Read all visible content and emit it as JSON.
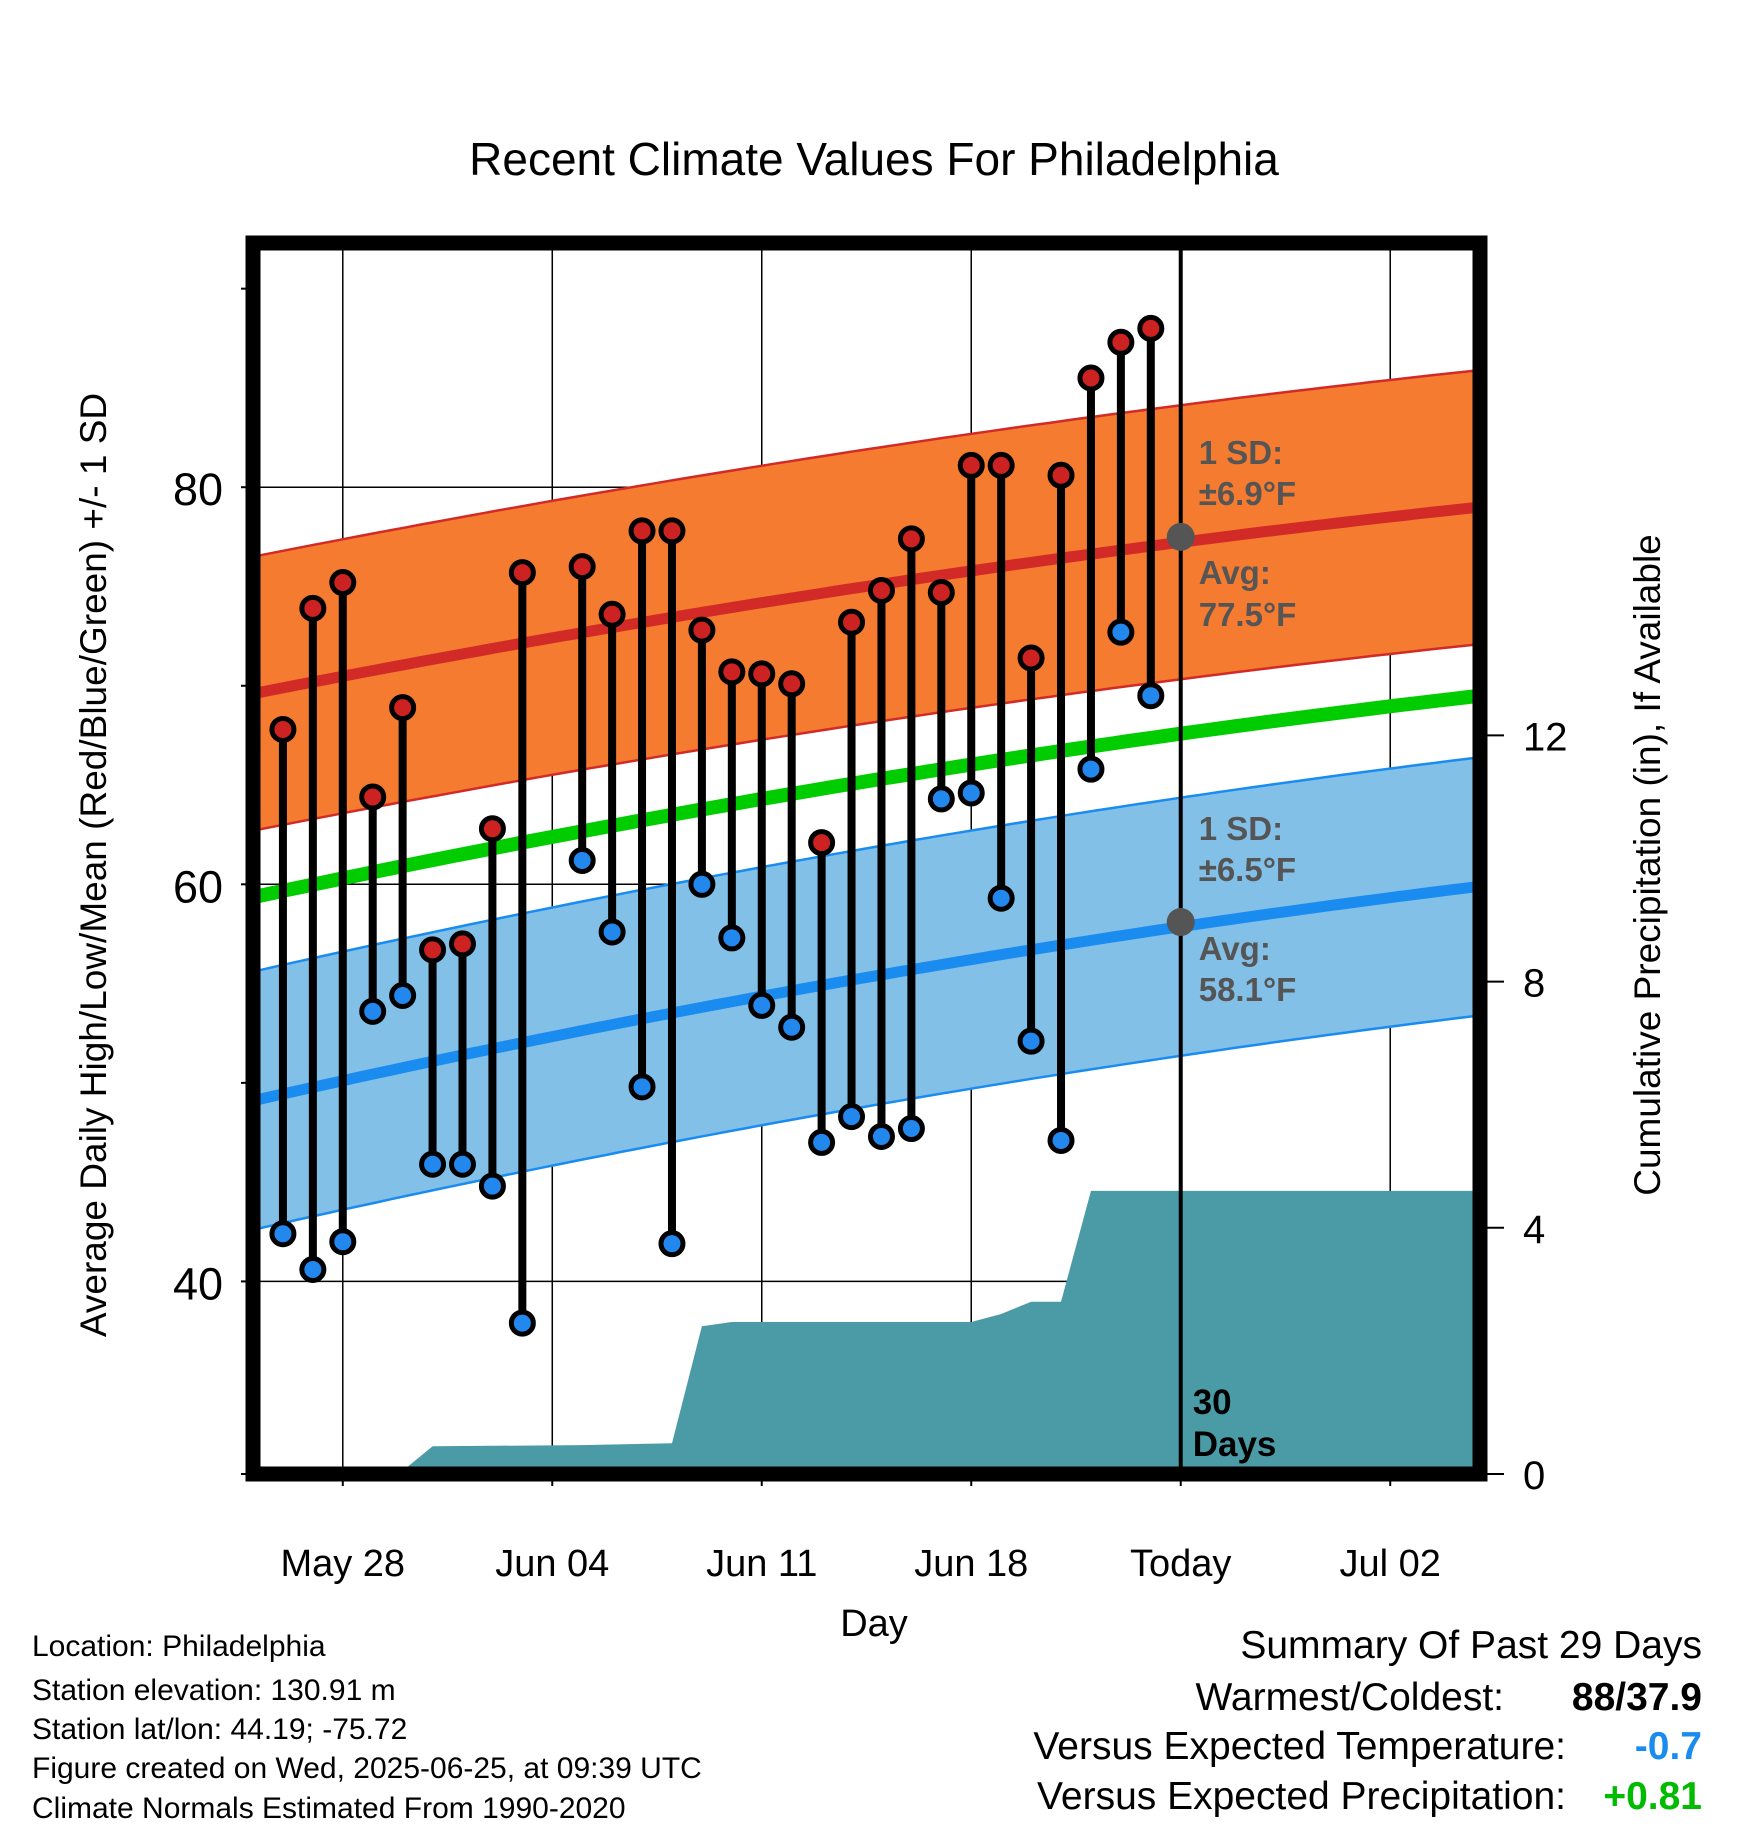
{
  "chart_data": {
    "type": "line",
    "title": "Recent Climate Values For Philadelphia",
    "xlabel": "Day",
    "ylabel": "Average Daily High/Low/Mean (Red/Blue/Green) +/- 1 SD",
    "y2label": "Cumulative Precipitation (in), If Available",
    "xlim": [
      "2025-05-25",
      "2025-07-05"
    ],
    "ylim": [
      30.3,
      92.3
    ],
    "y2lim": [
      0,
      20
    ],
    "x_ticks": [
      {
        "date": "2025-05-28",
        "label": "May 28"
      },
      {
        "date": "2025-06-04",
        "label": "Jun 04"
      },
      {
        "date": "2025-06-11",
        "label": "Jun 11"
      },
      {
        "date": "2025-06-18",
        "label": "Jun 18"
      },
      {
        "date": "2025-06-25",
        "label": "Today"
      },
      {
        "date": "2025-07-02",
        "label": "Jul 02"
      }
    ],
    "y_ticks": [
      40,
      60,
      80
    ],
    "y_minor_ticks": [
      50,
      70,
      90
    ],
    "y2_ticks": [
      0,
      4,
      8,
      12
    ],
    "today": "2025-06-25",
    "today_label": "30\nDays",
    "grid": true,
    "colors": {
      "high_band": "#f47b2f",
      "high_line": "#d22b27",
      "low_band": "#82c0e8",
      "low_line": "#1a8cf0",
      "mean_line": "#00cc00",
      "precip": "#4a9ba5",
      "high_marker": "#cc2222",
      "low_marker": "#2288ee"
    },
    "normals": {
      "high_avg": {
        "start": 69.6,
        "end": 79.0
      },
      "high_sd": 6.9,
      "low_avg": {
        "start": 49.1,
        "end": 59.9
      },
      "low_sd": 6.5,
      "mean": {
        "start": 59.35,
        "end": 69.5
      }
    },
    "high_annotation": {
      "sd_label": "1 SD:",
      "sd_value": "±6.9°F",
      "avg_label": "Avg:",
      "avg_value": "77.5°F",
      "avg": 77.5
    },
    "low_annotation": {
      "sd_label": "1 SD:",
      "sd_value": "±6.5°F",
      "avg_label": "Avg:",
      "avg_value": "58.1°F",
      "avg": 58.1
    },
    "daily": [
      {
        "date": "2025-05-26",
        "high": 67.8,
        "low": 42.4
      },
      {
        "date": "2025-05-27",
        "high": 73.9,
        "low": 40.6
      },
      {
        "date": "2025-05-28",
        "high": 75.2,
        "low": 42.0
      },
      {
        "date": "2025-05-29",
        "high": 64.4,
        "low": 53.6
      },
      {
        "date": "2025-05-30",
        "high": 68.9,
        "low": 54.4
      },
      {
        "date": "2025-05-31",
        "high": 56.7,
        "low": 45.9
      },
      {
        "date": "2025-06-01",
        "high": 57.0,
        "low": 45.9
      },
      {
        "date": "2025-06-02",
        "high": 62.8,
        "low": 44.8
      },
      {
        "date": "2025-06-03",
        "high": 75.7,
        "low": 37.9
      },
      {
        "date": "2025-06-05",
        "high": 76.0,
        "low": 61.2
      },
      {
        "date": "2025-06-06",
        "high": 73.6,
        "low": 57.6
      },
      {
        "date": "2025-06-07",
        "high": 77.8,
        "low": 49.8
      },
      {
        "date": "2025-06-08",
        "high": 77.8,
        "low": 41.9
      },
      {
        "date": "2025-06-09",
        "high": 72.8,
        "low": 60.0
      },
      {
        "date": "2025-06-10",
        "high": 70.7,
        "low": 57.3
      },
      {
        "date": "2025-06-11",
        "high": 70.6,
        "low": 53.9
      },
      {
        "date": "2025-06-12",
        "high": 70.1,
        "low": 52.8
      },
      {
        "date": "2025-06-13",
        "high": 62.1,
        "low": 47.0
      },
      {
        "date": "2025-06-14",
        "high": 73.2,
        "low": 48.3
      },
      {
        "date": "2025-06-15",
        "high": 74.8,
        "low": 47.3
      },
      {
        "date": "2025-06-16",
        "high": 77.4,
        "low": 47.7
      },
      {
        "date": "2025-06-17",
        "high": 74.7,
        "low": 64.3
      },
      {
        "date": "2025-06-18",
        "high": 81.1,
        "low": 64.6
      },
      {
        "date": "2025-06-19",
        "high": 81.1,
        "low": 59.3
      },
      {
        "date": "2025-06-20",
        "high": 71.4,
        "low": 52.1
      },
      {
        "date": "2025-06-21",
        "high": 80.6,
        "low": 47.1
      },
      {
        "date": "2025-06-22",
        "high": 85.5,
        "low": 65.8
      },
      {
        "date": "2025-06-23",
        "high": 87.3,
        "low": 72.7
      },
      {
        "date": "2025-06-24",
        "high": 88.0,
        "low": 69.5
      }
    ],
    "precip_cumulative": [
      {
        "date": "2025-05-25",
        "value": 0.0
      },
      {
        "date": "2025-05-28",
        "value": 0.0
      },
      {
        "date": "2025-05-29",
        "value": 0.05
      },
      {
        "date": "2025-05-30",
        "value": 0.05
      },
      {
        "date": "2025-05-31",
        "value": 0.45
      },
      {
        "date": "2025-06-05",
        "value": 0.47
      },
      {
        "date": "2025-06-08",
        "value": 0.5
      },
      {
        "date": "2025-06-09",
        "value": 2.4
      },
      {
        "date": "2025-06-10",
        "value": 2.47
      },
      {
        "date": "2025-06-18",
        "value": 2.47
      },
      {
        "date": "2025-06-19",
        "value": 2.6
      },
      {
        "date": "2025-06-20",
        "value": 2.8
      },
      {
        "date": "2025-06-21",
        "value": 2.8
      },
      {
        "date": "2025-06-22",
        "value": 4.6
      },
      {
        "date": "2025-07-05",
        "value": 4.6
      }
    ]
  },
  "footer": {
    "location": "Location: Philadelphia",
    "elevation": "Station elevation: 130.91 m",
    "latlon": "Station lat/lon: 44.19; -75.72",
    "created": "Figure created on Wed, 2025-06-25, at 09:39 UTC",
    "normals": "Climate Normals Estimated From 1990-2020"
  },
  "summary": {
    "title": "Summary Of Past 29 Days",
    "warmest_label": "Warmest/Coldest:",
    "warmest_value": "88/37.9",
    "temp_label": "Versus Expected Temperature:",
    "temp_value": "-0.7",
    "temp_color": "#1a8cf0",
    "precip_label": "Versus Expected Precipitation:",
    "precip_value": "+0.81",
    "precip_color": "#00bb00"
  }
}
